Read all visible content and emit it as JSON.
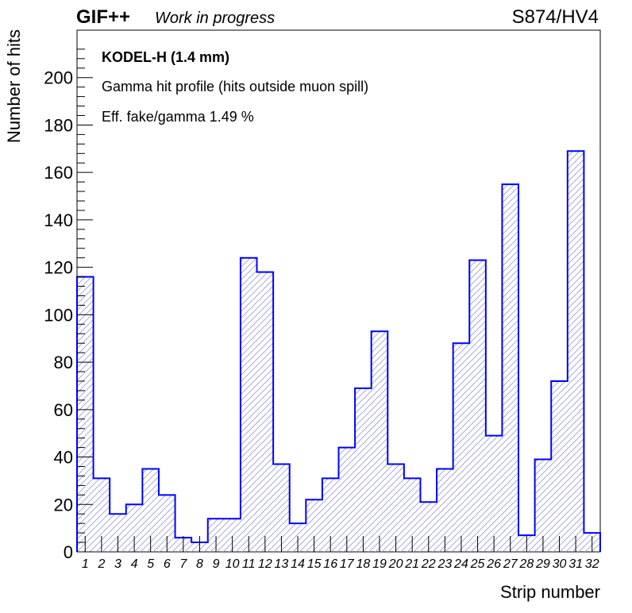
{
  "header": {
    "experiment": "GIF++",
    "status": "Work in progress",
    "run": "S874/HV4"
  },
  "annotations": {
    "detector": "KODEL-H (1.4 mm)",
    "description": "Gamma hit profile (hits outside muon spill)",
    "efficiency": "Eff. fake/gamma 1.49 %"
  },
  "chart_data": {
    "type": "bar",
    "style": "step-histogram",
    "xlabel": "Strip number",
    "ylabel": "Number of hits",
    "categories": [
      "1",
      "2",
      "3",
      "4",
      "5",
      "6",
      "7",
      "8",
      "9",
      "10",
      "11",
      "12",
      "13",
      "14",
      "15",
      "16",
      "17",
      "18",
      "19",
      "20",
      "21",
      "22",
      "23",
      "24",
      "25",
      "26",
      "27",
      "28",
      "29",
      "30",
      "31",
      "32"
    ],
    "values": [
      116,
      31,
      16,
      20,
      35,
      24,
      6,
      4,
      14,
      14,
      124,
      118,
      37,
      12,
      22,
      31,
      44,
      69,
      93,
      37,
      31,
      21,
      35,
      88,
      123,
      49,
      155,
      7,
      39,
      72,
      169,
      8
    ],
    "ylim": [
      0,
      220
    ],
    "yticks": [
      0,
      20,
      40,
      60,
      80,
      100,
      120,
      140,
      160,
      180,
      200
    ],
    "grid": false,
    "line_color": "#0000ff",
    "fill_hatch_color": "#9999dd"
  }
}
